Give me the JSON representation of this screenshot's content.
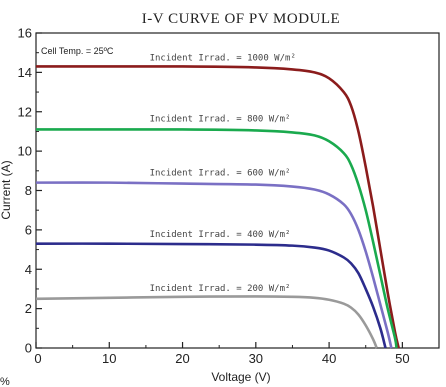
{
  "chart_data": {
    "type": "line",
    "title": "I-V CURVE OF PV MODULE",
    "xlabel": "Voltage (V)",
    "ylabel": "Current (A)",
    "xlim": [
      0,
      55
    ],
    "ylim": [
      0,
      16
    ],
    "xticks": [
      0,
      10,
      20,
      30,
      40,
      50
    ],
    "yticks": [
      0,
      2,
      4,
      6,
      8,
      10,
      12,
      14,
      16
    ],
    "grid": false,
    "note": "Cell Temp. = 25ºC",
    "series": [
      {
        "name": "Incident Irrad. = 1000 W/m²",
        "color": "#8b1c1c",
        "x": [
          0,
          10,
          20,
          30,
          35,
          38,
          40,
          42,
          43,
          44,
          45,
          46,
          47,
          48,
          49,
          49.5
        ],
        "y": [
          14.3,
          14.3,
          14.3,
          14.25,
          14.15,
          14.0,
          13.7,
          13.0,
          12.3,
          11.0,
          9.2,
          7.2,
          5.0,
          2.8,
          0.8,
          0
        ]
      },
      {
        "name": "Incident Irrad. = 800 W/m²",
        "color": "#1aaa4e",
        "x": [
          0,
          10,
          20,
          30,
          35,
          38,
          40,
          42,
          43,
          44,
          45,
          46,
          47,
          48,
          49,
          49.2
        ],
        "y": [
          11.1,
          11.1,
          11.1,
          11.05,
          10.95,
          10.8,
          10.5,
          9.9,
          9.3,
          8.3,
          7.0,
          5.4,
          3.7,
          2.0,
          0.5,
          0
        ]
      },
      {
        "name": "Incident Irrad. = 600 W/m²",
        "color": "#7a70c4",
        "x": [
          0,
          10,
          20,
          30,
          35,
          38,
          40,
          42,
          43,
          44,
          45,
          46,
          47,
          48,
          48.5
        ],
        "y": [
          8.4,
          8.4,
          8.35,
          8.3,
          8.2,
          8.05,
          7.8,
          7.3,
          6.8,
          6.0,
          4.9,
          3.6,
          2.2,
          0.8,
          0
        ]
      },
      {
        "name": "Incident Irrad. = 400 W/m²",
        "color": "#2c2c8c",
        "x": [
          0,
          10,
          20,
          30,
          35,
          38,
          40,
          42,
          43,
          44,
          45,
          46,
          47,
          47.7
        ],
        "y": [
          5.3,
          5.3,
          5.28,
          5.25,
          5.2,
          5.1,
          4.95,
          4.6,
          4.3,
          3.8,
          3.0,
          2.1,
          1.0,
          0
        ]
      },
      {
        "name": "Incident Irrad. = 200 W/m²",
        "color": "#9a9a9a",
        "x": [
          0,
          10,
          20,
          30,
          35,
          38,
          40,
          42,
          43,
          44,
          45,
          46,
          46.5
        ],
        "y": [
          2.5,
          2.55,
          2.6,
          2.62,
          2.6,
          2.55,
          2.45,
          2.25,
          2.05,
          1.7,
          1.15,
          0.45,
          0
        ]
      }
    ],
    "label_at": [
      {
        "x": 15.5,
        "y": 14.6
      },
      {
        "x": 15.5,
        "y": 11.5
      },
      {
        "x": 15.5,
        "y": 8.75
      },
      {
        "x": 15.5,
        "y": 5.65
      },
      {
        "x": 15.5,
        "y": 2.9
      }
    ]
  },
  "corner_text": "%"
}
